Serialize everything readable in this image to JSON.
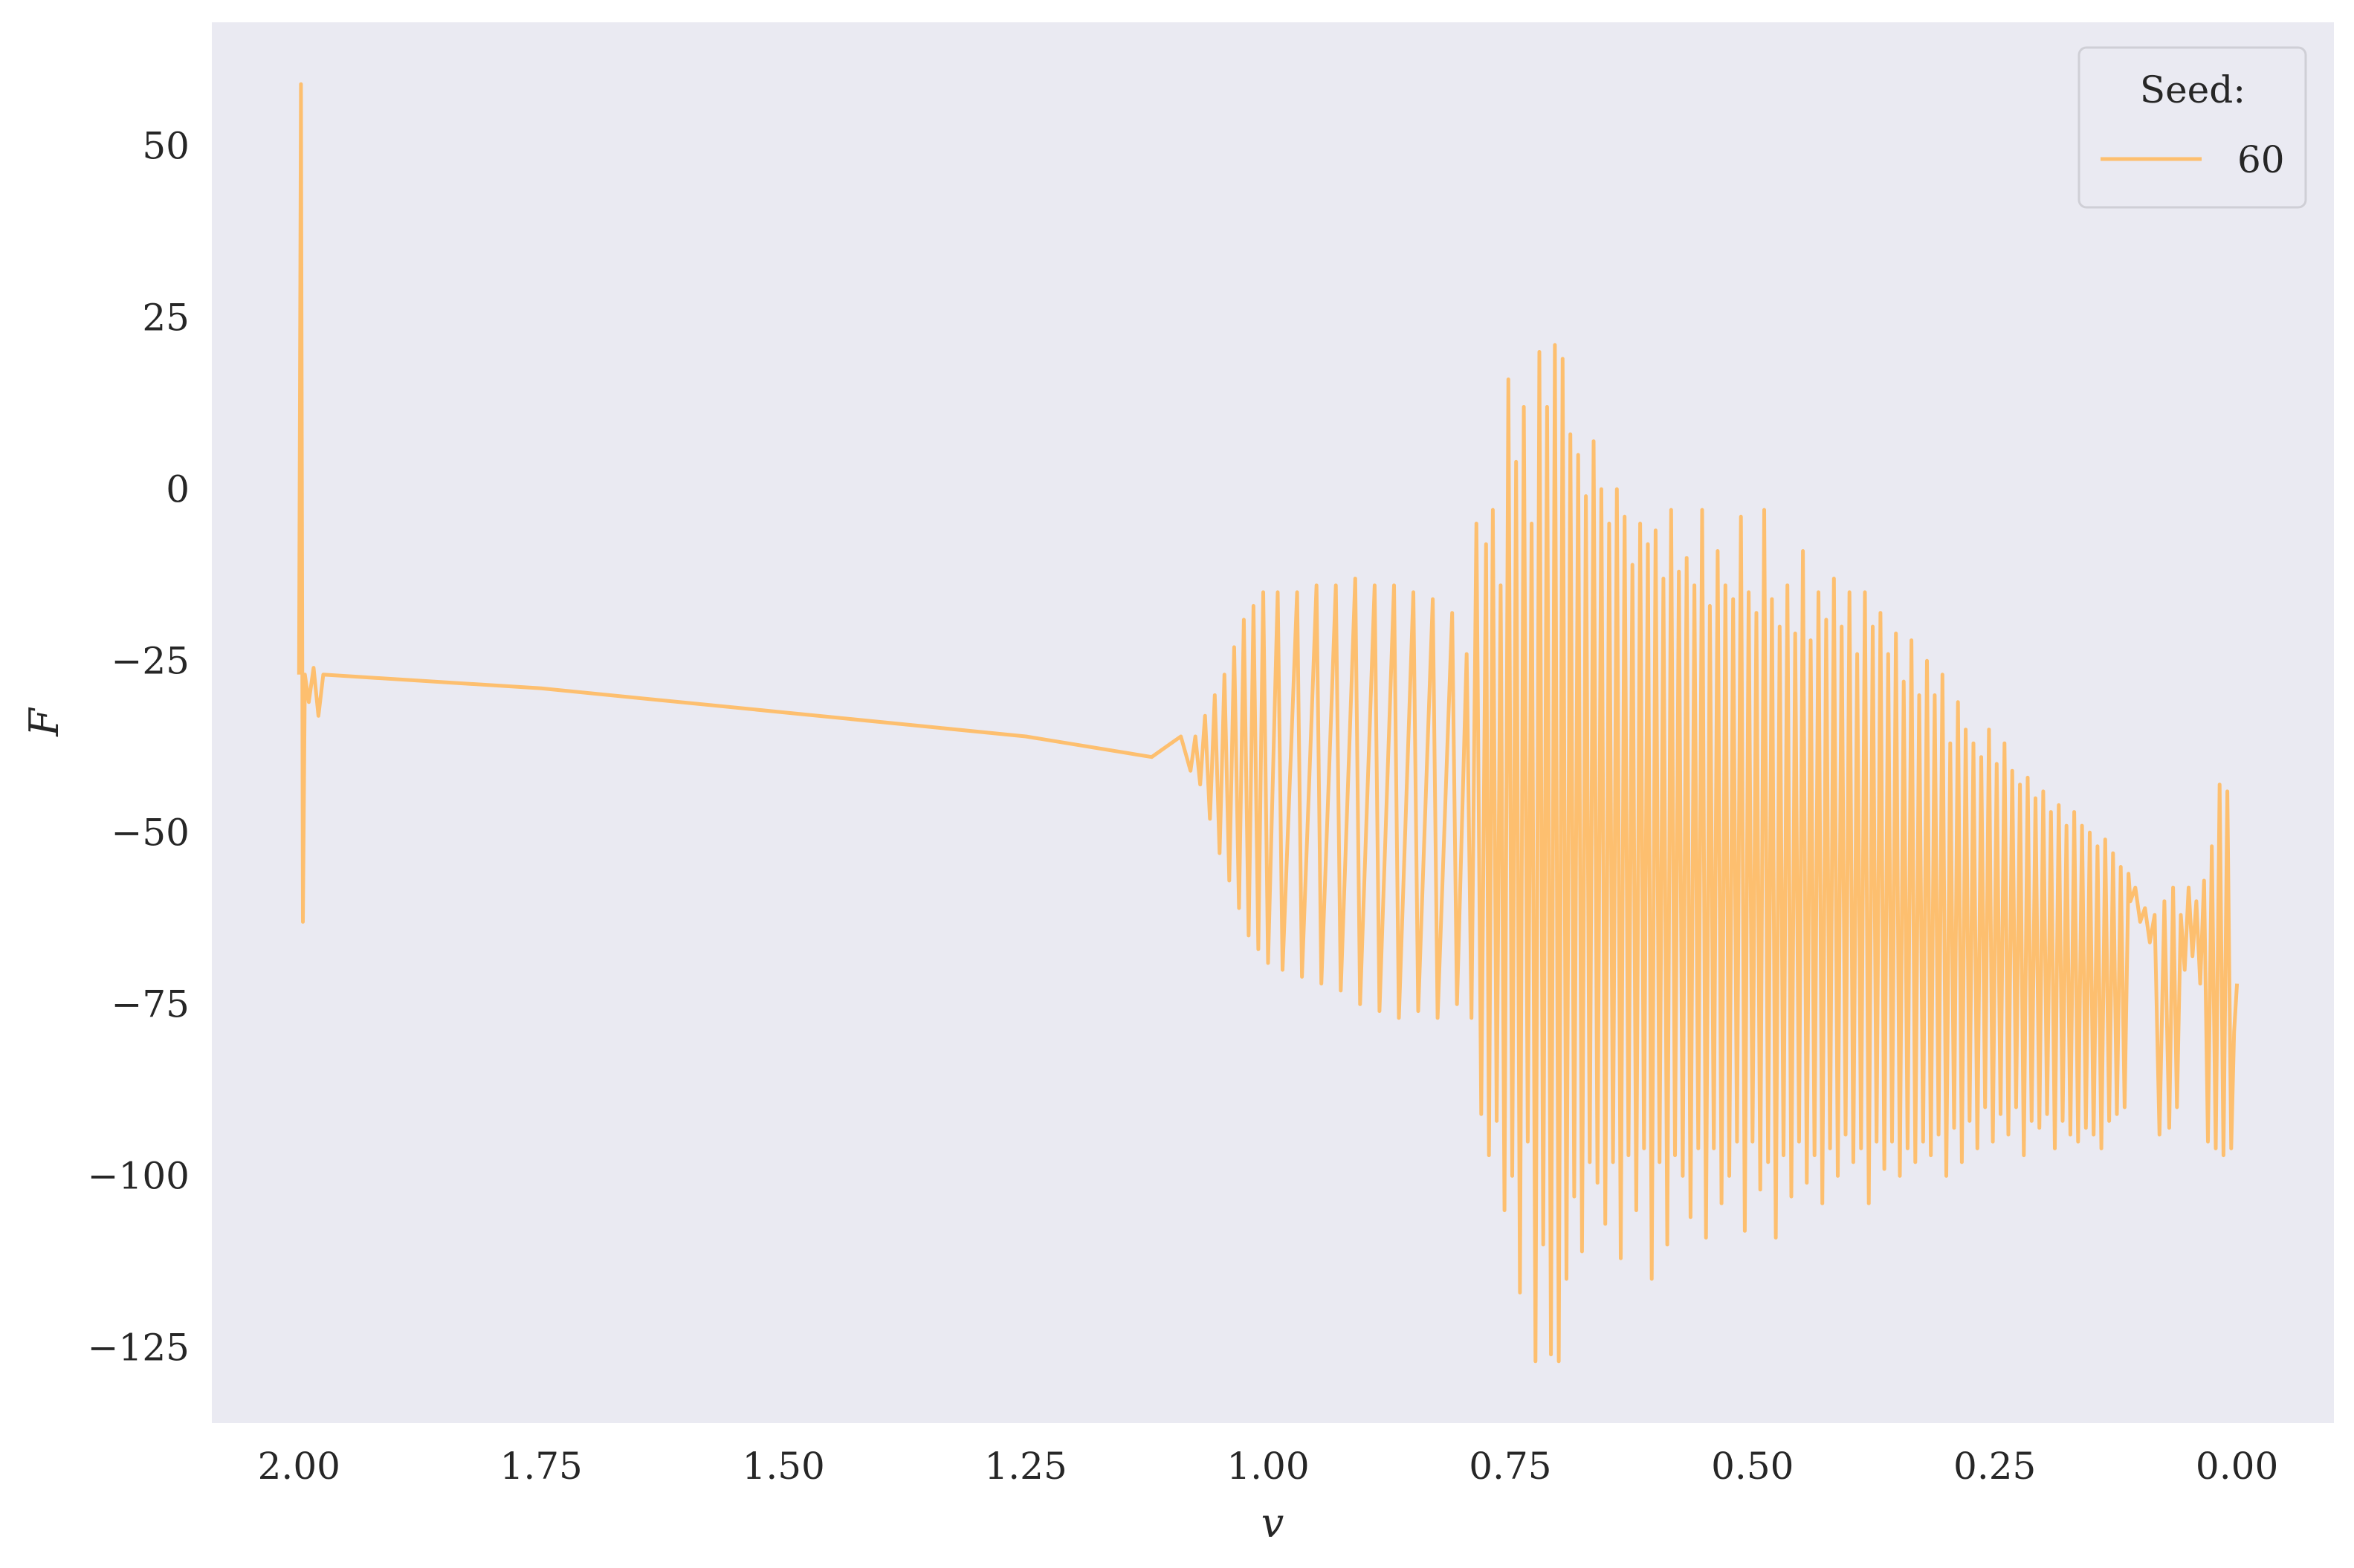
{
  "chart_data": {
    "type": "line",
    "title": "",
    "xlabel": "v",
    "ylabel": "F",
    "x_inverted": true,
    "xlim": [
      2.09,
      -0.1
    ],
    "ylim": [
      -136,
      68
    ],
    "grid": false,
    "background": "#eaeaf2",
    "x_ticks": [
      {
        "value": 2.0,
        "label": "2.00"
      },
      {
        "value": 1.75,
        "label": "1.75"
      },
      {
        "value": 1.5,
        "label": "1.50"
      },
      {
        "value": 1.25,
        "label": "1.25"
      },
      {
        "value": 1.0,
        "label": "1.00"
      },
      {
        "value": 0.75,
        "label": "0.75"
      },
      {
        "value": 0.5,
        "label": "0.50"
      },
      {
        "value": 0.25,
        "label": "0.25"
      },
      {
        "value": 0.0,
        "label": "0.00"
      }
    ],
    "y_ticks": [
      {
        "value": 50,
        "label": "50"
      },
      {
        "value": 25,
        "label": "25"
      },
      {
        "value": 0,
        "label": "0"
      },
      {
        "value": -25,
        "label": "−25"
      },
      {
        "value": -50,
        "label": "−50"
      },
      {
        "value": -75,
        "label": "−75"
      },
      {
        "value": -100,
        "label": "−100"
      },
      {
        "value": -125,
        "label": "−125"
      }
    ],
    "legend": {
      "title": "Seed:",
      "position": "top-right"
    },
    "series": [
      {
        "name": "60",
        "color": "#fdbf6f",
        "points": [
          [
            2.0,
            -27
          ],
          [
            1.998,
            59
          ],
          [
            1.996,
            -63
          ],
          [
            1.994,
            -27
          ],
          [
            1.99,
            -31
          ],
          [
            1.985,
            -26
          ],
          [
            1.98,
            -33
          ],
          [
            1.975,
            -27
          ],
          [
            1.75,
            -29
          ],
          [
            1.5,
            -32.5
          ],
          [
            1.25,
            -36
          ],
          [
            1.12,
            -39
          ],
          [
            1.1,
            -37
          ],
          [
            1.09,
            -36
          ],
          [
            1.08,
            -41
          ],
          [
            1.075,
            -36
          ],
          [
            1.07,
            -43
          ],
          [
            1.065,
            -33
          ],
          [
            1.06,
            -48
          ],
          [
            1.055,
            -30
          ],
          [
            1.05,
            -53
          ],
          [
            1.045,
            -27
          ],
          [
            1.04,
            -57
          ],
          [
            1.035,
            -23
          ],
          [
            1.03,
            -61
          ],
          [
            1.025,
            -19
          ],
          [
            1.02,
            -65
          ],
          [
            1.015,
            -17
          ],
          [
            1.01,
            -67
          ],
          [
            1.005,
            -15
          ],
          [
            1.0,
            -69
          ],
          [
            0.99,
            -15
          ],
          [
            0.985,
            -70
          ],
          [
            0.97,
            -15
          ],
          [
            0.965,
            -71
          ],
          [
            0.95,
            -14
          ],
          [
            0.945,
            -72
          ],
          [
            0.93,
            -14
          ],
          [
            0.925,
            -73
          ],
          [
            0.91,
            -13
          ],
          [
            0.905,
            -75
          ],
          [
            0.89,
            -14
          ],
          [
            0.885,
            -76
          ],
          [
            0.87,
            -14
          ],
          [
            0.865,
            -77
          ],
          [
            0.85,
            -15
          ],
          [
            0.845,
            -76
          ],
          [
            0.83,
            -16
          ],
          [
            0.825,
            -77
          ],
          [
            0.81,
            -18
          ],
          [
            0.805,
            -75
          ],
          [
            0.795,
            -24
          ],
          [
            0.79,
            -77
          ],
          [
            0.785,
            -5
          ],
          [
            0.78,
            -91
          ],
          [
            0.775,
            -8
          ],
          [
            0.772,
            -97
          ],
          [
            0.768,
            -3
          ],
          [
            0.764,
            -92
          ],
          [
            0.76,
            -14
          ],
          [
            0.756,
            -105
          ],
          [
            0.752,
            16
          ],
          [
            0.748,
            -100
          ],
          [
            0.744,
            4
          ],
          [
            0.74,
            -117
          ],
          [
            0.736,
            12
          ],
          [
            0.732,
            -95
          ],
          [
            0.728,
            -5
          ],
          [
            0.724,
            -127
          ],
          [
            0.72,
            20
          ],
          [
            0.716,
            -110
          ],
          [
            0.712,
            12
          ],
          [
            0.708,
            -126
          ],
          [
            0.704,
            21
          ],
          [
            0.7,
            -127
          ],
          [
            0.696,
            19
          ],
          [
            0.692,
            -115
          ],
          [
            0.688,
            8
          ],
          [
            0.684,
            -103
          ],
          [
            0.68,
            5
          ],
          [
            0.676,
            -111
          ],
          [
            0.672,
            -1
          ],
          [
            0.668,
            -98
          ],
          [
            0.664,
            7
          ],
          [
            0.66,
            -101
          ],
          [
            0.656,
            0
          ],
          [
            0.652,
            -107
          ],
          [
            0.648,
            -5
          ],
          [
            0.644,
            -98
          ],
          [
            0.64,
            0
          ],
          [
            0.636,
            -112
          ],
          [
            0.632,
            -4
          ],
          [
            0.628,
            -97
          ],
          [
            0.624,
            -11
          ],
          [
            0.62,
            -105
          ],
          [
            0.616,
            -5
          ],
          [
            0.612,
            -96
          ],
          [
            0.608,
            -8
          ],
          [
            0.604,
            -115
          ],
          [
            0.6,
            -6
          ],
          [
            0.596,
            -98
          ],
          [
            0.592,
            -13
          ],
          [
            0.588,
            -110
          ],
          [
            0.584,
            -3
          ],
          [
            0.58,
            -97
          ],
          [
            0.576,
            -12
          ],
          [
            0.572,
            -100
          ],
          [
            0.568,
            -10
          ],
          [
            0.564,
            -106
          ],
          [
            0.56,
            -14
          ],
          [
            0.556,
            -96
          ],
          [
            0.552,
            -3
          ],
          [
            0.548,
            -109
          ],
          [
            0.544,
            -17
          ],
          [
            0.54,
            -96
          ],
          [
            0.536,
            -9
          ],
          [
            0.532,
            -104
          ],
          [
            0.528,
            -14
          ],
          [
            0.524,
            -100
          ],
          [
            0.52,
            -16
          ],
          [
            0.516,
            -95
          ],
          [
            0.512,
            -4
          ],
          [
            0.508,
            -108
          ],
          [
            0.504,
            -15
          ],
          [
            0.5,
            -95
          ],
          [
            0.496,
            -18
          ],
          [
            0.492,
            -102
          ],
          [
            0.488,
            -3
          ],
          [
            0.484,
            -98
          ],
          [
            0.48,
            -16
          ],
          [
            0.476,
            -109
          ],
          [
            0.472,
            -20
          ],
          [
            0.468,
            -97
          ],
          [
            0.464,
            -14
          ],
          [
            0.46,
            -103
          ],
          [
            0.456,
            -21
          ],
          [
            0.452,
            -95
          ],
          [
            0.448,
            -9
          ],
          [
            0.444,
            -101
          ],
          [
            0.44,
            -22
          ],
          [
            0.436,
            -97
          ],
          [
            0.432,
            -15
          ],
          [
            0.428,
            -104
          ],
          [
            0.424,
            -19
          ],
          [
            0.42,
            -96
          ],
          [
            0.416,
            -13
          ],
          [
            0.412,
            -100
          ],
          [
            0.408,
            -20
          ],
          [
            0.404,
            -94
          ],
          [
            0.4,
            -15
          ],
          [
            0.396,
            -98
          ],
          [
            0.392,
            -24
          ],
          [
            0.388,
            -96
          ],
          [
            0.384,
            -15
          ],
          [
            0.38,
            -104
          ],
          [
            0.376,
            -20
          ],
          [
            0.372,
            -95
          ],
          [
            0.368,
            -18
          ],
          [
            0.364,
            -99
          ],
          [
            0.36,
            -24
          ],
          [
            0.356,
            -95
          ],
          [
            0.352,
            -21
          ],
          [
            0.348,
            -100
          ],
          [
            0.344,
            -28
          ],
          [
            0.34,
            -96
          ],
          [
            0.336,
            -22
          ],
          [
            0.332,
            -98
          ],
          [
            0.328,
            -30
          ],
          [
            0.324,
            -95
          ],
          [
            0.32,
            -25
          ],
          [
            0.316,
            -97
          ],
          [
            0.312,
            -30
          ],
          [
            0.308,
            -94
          ],
          [
            0.304,
            -27
          ],
          [
            0.3,
            -100
          ],
          [
            0.296,
            -37
          ],
          [
            0.292,
            -93
          ],
          [
            0.288,
            -31
          ],
          [
            0.284,
            -98
          ],
          [
            0.28,
            -35
          ],
          [
            0.276,
            -92
          ],
          [
            0.272,
            -37
          ],
          [
            0.268,
            -96
          ],
          [
            0.264,
            -39
          ],
          [
            0.26,
            -90
          ],
          [
            0.256,
            -35
          ],
          [
            0.252,
            -95
          ],
          [
            0.248,
            -40
          ],
          [
            0.244,
            -91
          ],
          [
            0.24,
            -37
          ],
          [
            0.236,
            -94
          ],
          [
            0.232,
            -41
          ],
          [
            0.228,
            -90
          ],
          [
            0.224,
            -43
          ],
          [
            0.22,
            -97
          ],
          [
            0.216,
            -42
          ],
          [
            0.212,
            -92
          ],
          [
            0.208,
            -45
          ],
          [
            0.204,
            -93
          ],
          [
            0.2,
            -44
          ],
          [
            0.196,
            -91
          ],
          [
            0.192,
            -47
          ],
          [
            0.188,
            -96
          ],
          [
            0.184,
            -46
          ],
          [
            0.18,
            -92
          ],
          [
            0.176,
            -49
          ],
          [
            0.172,
            -94
          ],
          [
            0.168,
            -47
          ],
          [
            0.164,
            -95
          ],
          [
            0.16,
            -49
          ],
          [
            0.156,
            -93
          ],
          [
            0.152,
            -50
          ],
          [
            0.148,
            -94
          ],
          [
            0.144,
            -52
          ],
          [
            0.14,
            -96
          ],
          [
            0.136,
            -51
          ],
          [
            0.132,
            -92
          ],
          [
            0.128,
            -53
          ],
          [
            0.124,
            -91
          ],
          [
            0.12,
            -55
          ],
          [
            0.116,
            -90
          ],
          [
            0.112,
            -56
          ],
          [
            0.11,
            -60
          ],
          [
            0.105,
            -58
          ],
          [
            0.1,
            -63
          ],
          [
            0.095,
            -61
          ],
          [
            0.09,
            -66
          ],
          [
            0.085,
            -62
          ],
          [
            0.08,
            -94
          ],
          [
            0.075,
            -60
          ],
          [
            0.07,
            -93
          ],
          [
            0.066,
            -58
          ],
          [
            0.062,
            -90
          ],
          [
            0.058,
            -62
          ],
          [
            0.054,
            -70
          ],
          [
            0.05,
            -58
          ],
          [
            0.046,
            -68
          ],
          [
            0.042,
            -60
          ],
          [
            0.038,
            -72
          ],
          [
            0.034,
            -57
          ],
          [
            0.03,
            -95
          ],
          [
            0.026,
            -52
          ],
          [
            0.022,
            -96
          ],
          [
            0.018,
            -43
          ],
          [
            0.014,
            -97
          ],
          [
            0.01,
            -44
          ],
          [
            0.006,
            -96
          ],
          [
            0.003,
            -79
          ],
          [
            0.0,
            -72
          ]
        ]
      }
    ]
  }
}
